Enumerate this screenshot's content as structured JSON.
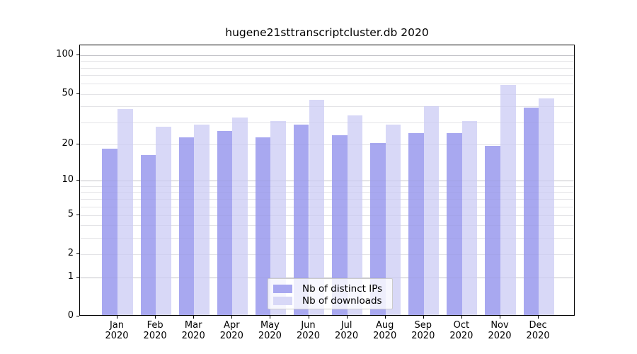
{
  "chart_data": {
    "type": "bar",
    "title": "hugene21sttranscriptcluster.db 2020",
    "categories": [
      "Jan",
      "Feb",
      "Mar",
      "Apr",
      "May",
      "Jun",
      "Jul",
      "Aug",
      "Sep",
      "Oct",
      "Nov",
      "Dec"
    ],
    "category_year": "2020",
    "series": [
      {
        "name": "Nb of distinct IPs",
        "color": "#a8a8f0",
        "values": [
          18,
          16,
          22,
          25,
          22,
          28,
          23,
          20,
          24,
          24,
          19,
          38
        ]
      },
      {
        "name": "Nb of downloads",
        "color": "#d8d8f7",
        "values": [
          37,
          27,
          28,
          32,
          30,
          44,
          33,
          28,
          39,
          30,
          57,
          45
        ]
      }
    ],
    "xlabel": "",
    "ylabel": "",
    "yscale": "log1p",
    "ylim": [
      0,
      119.5
    ],
    "ytick_labels": [
      0,
      1,
      2,
      5,
      10,
      20,
      50,
      100
    ],
    "gridline_values": [
      1,
      2,
      3,
      4,
      5,
      6,
      7,
      8,
      9,
      10,
      20,
      30,
      40,
      50,
      60,
      70,
      80,
      90,
      100
    ],
    "grid": true,
    "legend_position": "lower center",
    "colors": {
      "grid_minor": "#ededed",
      "grid_decade": "#d0d0d0",
      "spine": "#000000",
      "legend_border": "#cccccc"
    }
  }
}
